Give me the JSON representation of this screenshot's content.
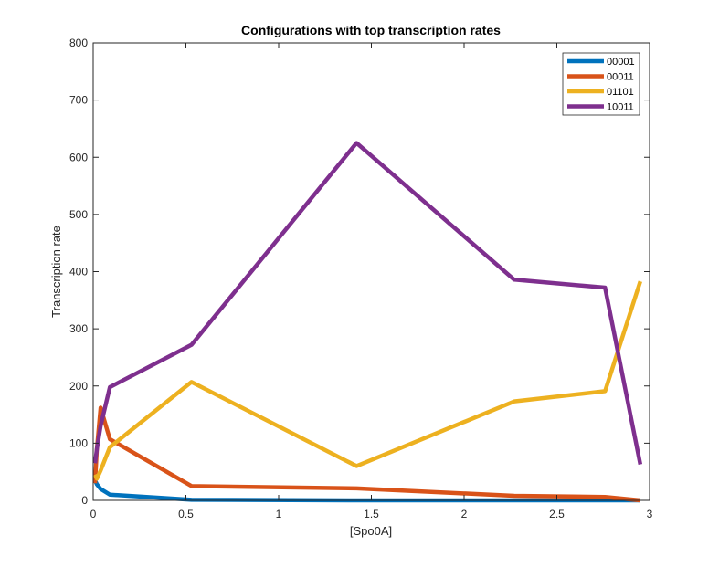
{
  "chart_data": {
    "type": "line",
    "title": "Configurations with top transcription rates",
    "xlabel": "[Spo0A]",
    "ylabel": "Transcription rate",
    "xlim": [
      0,
      3
    ],
    "ylim": [
      0,
      800
    ],
    "xticks": [
      0,
      0.5,
      1,
      1.5,
      2,
      2.5,
      3
    ],
    "xtick_labels": [
      "0",
      "0.5",
      "1",
      "1.5",
      "2",
      "2.5",
      "3"
    ],
    "yticks": [
      0,
      100,
      200,
      300,
      400,
      500,
      600,
      700,
      800
    ],
    "ytick_labels": [
      "0",
      "100",
      "200",
      "300",
      "400",
      "500",
      "600",
      "700",
      "800"
    ],
    "grid": false,
    "legend_position": "top-right",
    "x": [
      0.01,
      0.02,
      0.04,
      0.09,
      0.53,
      1.42,
      2.27,
      2.76,
      2.95
    ],
    "series": [
      {
        "name": "00001",
        "color": "#0072BD",
        "values": [
          35,
          28,
          20,
          10,
          1,
          0,
          0,
          0,
          0
        ]
      },
      {
        "name": "00011",
        "color": "#D95319",
        "values": [
          30,
          90,
          162,
          107,
          25,
          21,
          8,
          6,
          0
        ]
      },
      {
        "name": "01101",
        "color": "#EDB120",
        "values": [
          45,
          38,
          52,
          93,
          207,
          60,
          173,
          191,
          383
        ]
      },
      {
        "name": "10011",
        "color": "#7E2F8E",
        "values": [
          65,
          90,
          130,
          198,
          272,
          625,
          386,
          372,
          63
        ]
      }
    ]
  }
}
